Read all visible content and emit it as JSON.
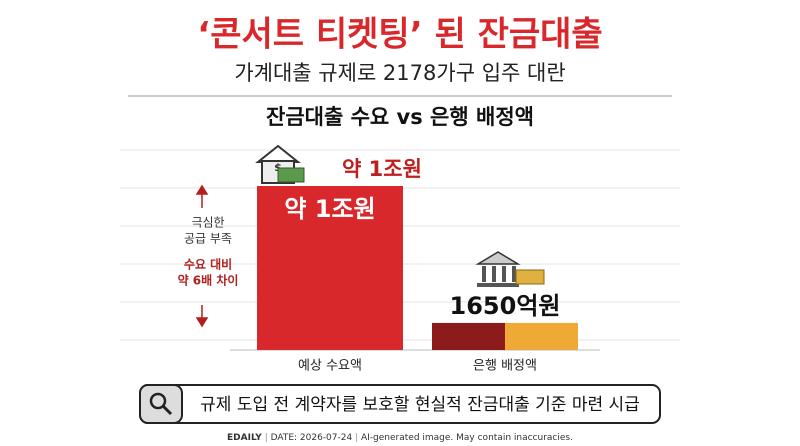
{
  "title": "‘콘서트 티켓팅’ 된 잔금대출",
  "subtitle": "가계대출 규제로 2178가구 입주 대란",
  "chart_data": {
    "type": "bar",
    "title": "잔금대출 수요 vs 은행 배정액",
    "categories": [
      "예상 수요액",
      "은행 배정액"
    ],
    "values": [
      10000,
      1650
    ],
    "value_labels": [
      "약 1조원",
      "1650억원"
    ],
    "colors": [
      "#d9282c",
      "#8e1b1b"
    ],
    "accent_color": "#efa935"
  },
  "annotation": {
    "note": [
      "극심한",
      "공급 부족"
    ],
    "highlight": [
      "수요 대비",
      "약 6배 차이"
    ]
  },
  "callout": "규제 도입 전 계약자를 보호할 현실적 잔금대출 기준 마련 시급",
  "footer": [
    "EDAILY",
    "DATE: 2026-07-24",
    "AI-generated image. May contain inaccuracies."
  ]
}
